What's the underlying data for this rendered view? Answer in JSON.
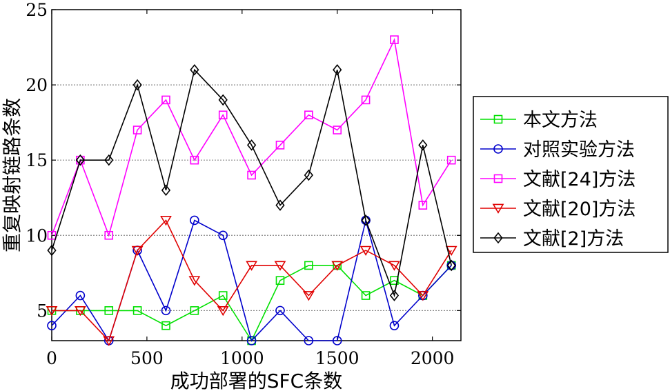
{
  "chart_data": {
    "type": "line",
    "title": "",
    "xlabel": "成功部署的SFC条数",
    "ylabel": "重复映射链路条数",
    "xlim": [
      0,
      2150
    ],
    "ylim": [
      3,
      25
    ],
    "xticks": [
      0,
      500,
      1000,
      1500,
      2000
    ],
    "yticks": [
      5,
      10,
      15,
      20,
      25
    ],
    "grid": "horizontal-dotted",
    "legend_position": "right",
    "x": [
      0,
      150,
      300,
      450,
      600,
      750,
      900,
      1050,
      1200,
      1350,
      1500,
      1650,
      1800,
      1950,
      2100
    ],
    "series": [
      {
        "name": "本文方法",
        "color": "#00e000",
        "marker": "square",
        "values": [
          5,
          5,
          5,
          5,
          4,
          5,
          6,
          3,
          7,
          8,
          8,
          6,
          7,
          6,
          8
        ]
      },
      {
        "name": "对照实验方法",
        "color": "#0000cc",
        "marker": "circle",
        "values": [
          4,
          6,
          3,
          9,
          5,
          11,
          10,
          3,
          5,
          3,
          3,
          11,
          4,
          6,
          8
        ]
      },
      {
        "name": "文献[24]方法",
        "color": "#ff00ff",
        "marker": "square",
        "values": [
          10,
          15,
          10,
          17,
          19,
          15,
          18,
          14,
          16,
          18,
          17,
          19,
          23,
          12,
          15
        ]
      },
      {
        "name": "文献[20]方法",
        "color": "#e00000",
        "marker": "triangle-down",
        "values": [
          5,
          5,
          3,
          9,
          11,
          7,
          5,
          8,
          8,
          6,
          8,
          9,
          8,
          6,
          9
        ]
      },
      {
        "name": "文献[2]方法",
        "color": "#000000",
        "marker": "diamond",
        "values": [
          9,
          15,
          15,
          20,
          13,
          21,
          19,
          16,
          12,
          14,
          21,
          11,
          6,
          16,
          8
        ]
      }
    ]
  }
}
